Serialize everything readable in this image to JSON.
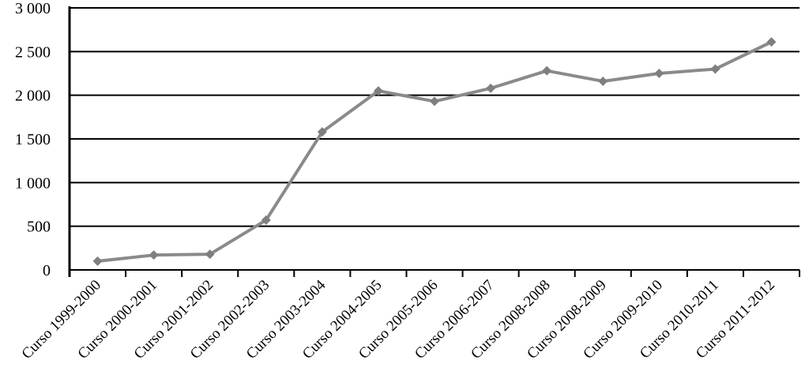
{
  "chart_data": {
    "type": "line",
    "title": "",
    "xlabel": "",
    "ylabel": "",
    "categories": [
      "Curso 1999-2000",
      "Curso 2000-2001",
      "Curso 2001-2002",
      "Curso 2002-2003",
      "Curso 2003-2004",
      "Curso 2004-2005",
      "Curso 2005-2006",
      "Curso 2006-2007",
      "Curso 2008-2008",
      "Curso 2008-2009",
      "Curso 2009-2010",
      "Curso 2010-2011",
      "Curso 2011-2012"
    ],
    "values": [
      100,
      170,
      180,
      570,
      1580,
      2050,
      1930,
      2080,
      2280,
      2160,
      2250,
      2300,
      2610
    ],
    "ylim": [
      0,
      3000
    ],
    "ytick_step": 500,
    "ytick_labels": [
      "0",
      "500",
      "1 000",
      "1 500",
      "2 000",
      "2 500",
      "3 000"
    ],
    "grid": "horizontal",
    "legend_position": "none",
    "marker": "diamond",
    "colors": {
      "line": "#8a8a8a",
      "marker": "#7f7f7f",
      "gridline": "#000000",
      "axis": "#000000",
      "background": "#ffffff",
      "text": "#000000"
    }
  }
}
